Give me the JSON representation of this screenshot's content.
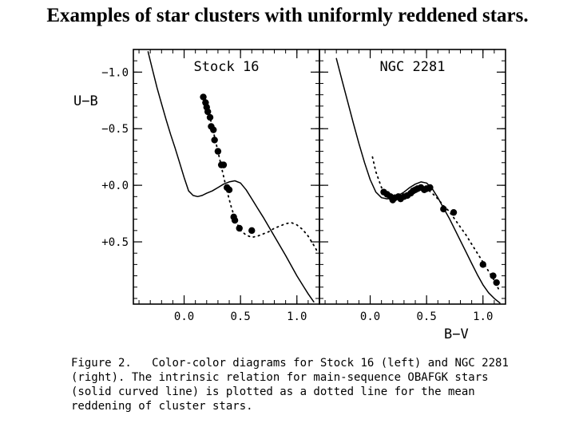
{
  "slide": {
    "title": "Examples of star clusters with uniformly reddened stars."
  },
  "figure": {
    "caption_label": "Figure 2.",
    "caption_text": "Color-color diagrams for Stock 16 (left) and NGC 2281 (right). The intrinsic relation for main-sequence OBAFGK stars (solid curved line) is plotted as a dotted line for the mean reddening of cluster stars."
  },
  "chart_data": [
    {
      "type": "scatter",
      "title": "Stock 16",
      "xlabel": "B−V",
      "ylabel": "U−B",
      "xlim": [
        -0.45,
        1.2
      ],
      "ylim": [
        1.05,
        -1.2
      ],
      "y_inverted": true,
      "x_ticks": [
        "0.0",
        "0.5",
        "1.0"
      ],
      "x_tick_values": [
        0.0,
        0.5,
        1.0
      ],
      "y_ticks": [
        "−1.0",
        "−0.5",
        "+0.0",
        "+0.5"
      ],
      "y_tick_values": [
        -1.0,
        -0.5,
        0.0,
        0.5
      ],
      "intrinsic_relation": {
        "style": "solid",
        "x": [
          -0.32,
          -0.28,
          -0.24,
          -0.2,
          -0.16,
          -0.12,
          -0.08,
          -0.04,
          0.0,
          0.04,
          0.08,
          0.12,
          0.16,
          0.2,
          0.25,
          0.3,
          0.35,
          0.4,
          0.45,
          0.5,
          0.55,
          0.6,
          0.65,
          0.7,
          0.8,
          0.9,
          1.0,
          1.05,
          1.1,
          1.15
        ],
        "y": [
          -1.18,
          -1.02,
          -0.86,
          -0.72,
          -0.58,
          -0.45,
          -0.33,
          -0.2,
          -0.07,
          0.05,
          0.09,
          0.1,
          0.09,
          0.07,
          0.05,
          0.02,
          -0.01,
          -0.03,
          -0.04,
          -0.02,
          0.04,
          0.12,
          0.2,
          0.28,
          0.45,
          0.62,
          0.8,
          0.88,
          0.96,
          1.03
        ]
      },
      "reddened_relation": {
        "style": "dotted",
        "x": [
          0.18,
          0.22,
          0.26,
          0.3,
          0.34,
          0.38,
          0.42,
          0.46,
          0.5,
          0.55,
          0.6,
          0.65,
          0.7,
          0.75,
          0.8,
          0.85,
          0.9,
          0.95,
          1.0,
          1.05,
          1.1,
          1.15,
          1.19
        ],
        "y": [
          -0.8,
          -0.64,
          -0.47,
          -0.3,
          -0.12,
          0.05,
          0.2,
          0.32,
          0.4,
          0.44,
          0.46,
          0.45,
          0.43,
          0.41,
          0.38,
          0.36,
          0.34,
          0.33,
          0.35,
          0.39,
          0.45,
          0.53,
          0.6
        ]
      },
      "points": {
        "name": "cluster stars",
        "x": [
          0.17,
          0.19,
          0.2,
          0.21,
          0.23,
          0.24,
          0.26,
          0.27,
          0.3,
          0.33,
          0.35,
          0.38,
          0.4,
          0.44,
          0.45,
          0.49,
          0.6
        ],
        "y": [
          -0.78,
          -0.73,
          -0.69,
          -0.65,
          -0.6,
          -0.52,
          -0.49,
          -0.4,
          -0.3,
          -0.18,
          -0.18,
          0.02,
          0.04,
          0.28,
          0.31,
          0.38,
          0.4
        ]
      }
    },
    {
      "type": "scatter",
      "title": "NGC 2281",
      "xlabel": "B−V",
      "ylabel": "U−B",
      "xlim": [
        -0.45,
        1.2
      ],
      "ylim": [
        1.05,
        -1.2
      ],
      "y_inverted": true,
      "x_ticks": [
        "0.0",
        "0.5",
        "1.0"
      ],
      "x_tick_values": [
        0.0,
        0.5,
        1.0
      ],
      "y_ticks": [
        "−1.0",
        "−0.5",
        "+0.0",
        "+0.5"
      ],
      "y_tick_values": [
        -1.0,
        -0.5,
        0.0,
        0.5
      ],
      "intrinsic_relation": {
        "style": "solid",
        "x": [
          -0.3,
          -0.25,
          -0.2,
          -0.15,
          -0.1,
          -0.05,
          0.0,
          0.05,
          0.1,
          0.15,
          0.2,
          0.25,
          0.3,
          0.35,
          0.4,
          0.45,
          0.5,
          0.55,
          0.6,
          0.65,
          0.7,
          0.75,
          0.8,
          0.85,
          0.9,
          0.95,
          1.0,
          1.05,
          1.1,
          1.15
        ],
        "y": [
          -1.12,
          -0.93,
          -0.74,
          -0.55,
          -0.37,
          -0.2,
          -0.05,
          0.06,
          0.11,
          0.12,
          0.11,
          0.09,
          0.06,
          0.02,
          -0.01,
          -0.03,
          -0.02,
          0.03,
          0.11,
          0.2,
          0.29,
          0.39,
          0.49,
          0.59,
          0.69,
          0.79,
          0.88,
          0.95,
          1.0,
          1.04
        ]
      },
      "reddened_relation": {
        "style": "dotted",
        "x": [
          0.02,
          0.05,
          0.1,
          0.15,
          0.2,
          0.25,
          0.3,
          0.35,
          0.4,
          0.45,
          0.5,
          0.55,
          0.6,
          0.65,
          0.7,
          0.75,
          0.8,
          0.85,
          0.9,
          0.95,
          1.0,
          1.05,
          1.1,
          1.14
        ],
        "y": [
          -0.25,
          -0.12,
          0.02,
          0.09,
          0.12,
          0.12,
          0.1,
          0.07,
          0.04,
          0.02,
          0.03,
          0.07,
          0.12,
          0.18,
          0.23,
          0.3,
          0.37,
          0.44,
          0.52,
          0.6,
          0.68,
          0.76,
          0.84,
          0.92
        ]
      },
      "points": {
        "name": "cluster stars",
        "x": [
          0.12,
          0.15,
          0.18,
          0.2,
          0.22,
          0.25,
          0.27,
          0.3,
          0.33,
          0.36,
          0.38,
          0.4,
          0.42,
          0.45,
          0.48,
          0.5,
          0.53,
          0.65,
          0.74,
          1.0,
          1.09,
          1.12
        ],
        "y": [
          0.06,
          0.08,
          0.1,
          0.13,
          0.11,
          0.1,
          0.12,
          0.1,
          0.09,
          0.07,
          0.05,
          0.04,
          0.03,
          0.02,
          0.04,
          0.03,
          0.02,
          0.21,
          0.24,
          0.7,
          0.8,
          0.86
        ]
      }
    }
  ]
}
